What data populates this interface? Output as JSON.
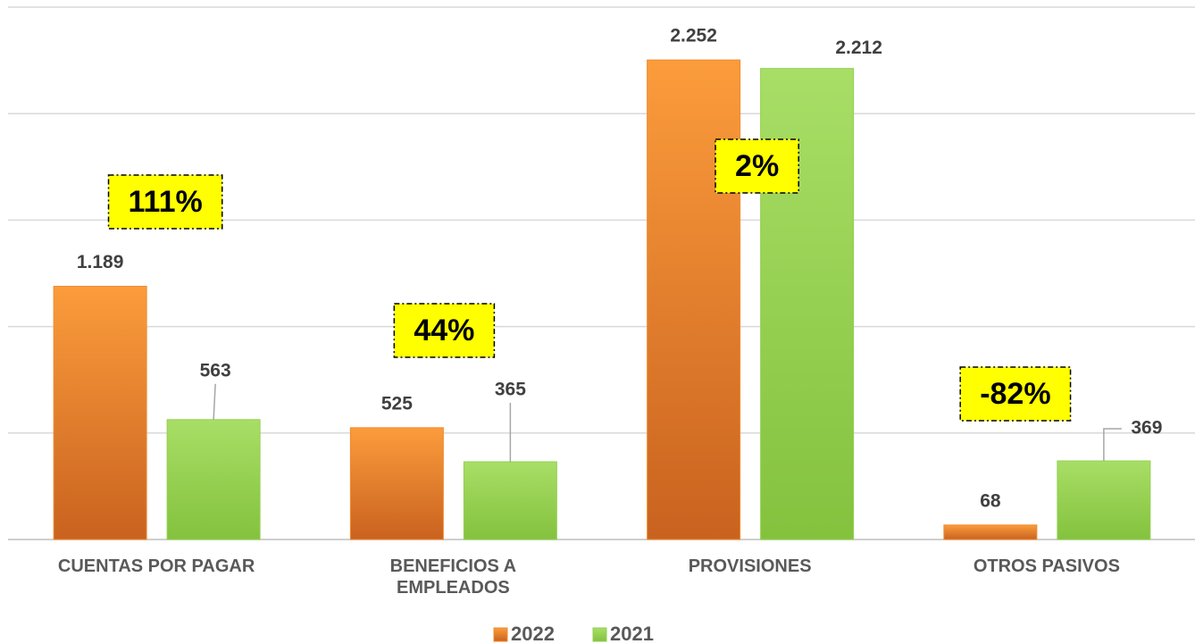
{
  "chart_data": {
    "type": "bar",
    "categories": [
      "CUENTAS POR PAGAR",
      "BENEFICIOS A\nEMPLEADOS",
      "PROVISIONES",
      "OTROS PASIVOS"
    ],
    "series": [
      {
        "name": "2022",
        "color": "#f08a2e",
        "values": [
          1189,
          525,
          2252,
          68
        ],
        "value_labels": [
          "1.189",
          "525",
          "2.252",
          "68"
        ]
      },
      {
        "name": "2021",
        "color": "#92d050",
        "values": [
          563,
          365,
          2212,
          369
        ],
        "value_labels": [
          "563",
          "365",
          "2.212",
          "369"
        ]
      }
    ],
    "annotations": [
      "111%",
      "44%",
      "2%",
      "-82%"
    ],
    "ylim": [
      0,
      2500
    ],
    "yticks": [
      0,
      500,
      1000,
      1500,
      2000,
      2500
    ],
    "grid": true,
    "legend": "bottom"
  }
}
